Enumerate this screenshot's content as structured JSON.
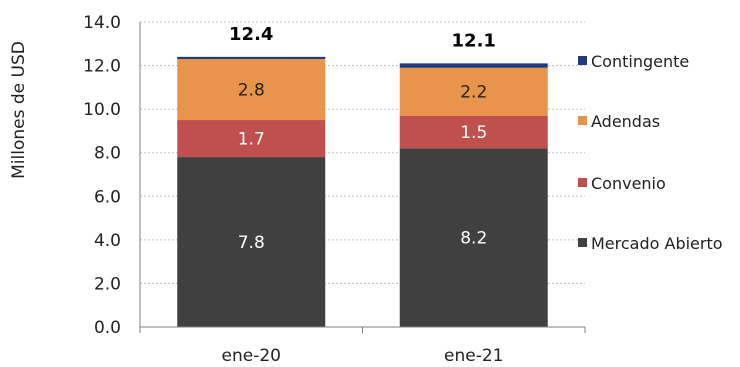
{
  "chart_data": {
    "type": "bar",
    "stacked": true,
    "title": "",
    "xlabel": "",
    "ylabel": "Millones de USD",
    "ylim": [
      0,
      14
    ],
    "yticks": [
      "0.0",
      "2.0",
      "4.0",
      "6.0",
      "8.0",
      "10.0",
      "12.0",
      "14.0"
    ],
    "categories": [
      "ene-20",
      "ene-21"
    ],
    "totals": [
      "12.4",
      "12.1"
    ],
    "grid": true,
    "legend_position": "right",
    "series": [
      {
        "name": "Mercado Abierto",
        "color": "#404040",
        "label_color": "#ffffff",
        "values": [
          7.8,
          8.2
        ],
        "labels": [
          "7.8",
          "8.2"
        ]
      },
      {
        "name": "Convenio",
        "color": "#c0504d",
        "label_color": "#ffffff",
        "values": [
          1.7,
          1.5
        ],
        "labels": [
          "1.7",
          "1.5"
        ]
      },
      {
        "name": "Adendas",
        "color": "#e8944a",
        "label_color": "#222222",
        "values": [
          2.8,
          2.2
        ],
        "labels": [
          "2.8",
          "2.2"
        ]
      },
      {
        "name": "Contingente",
        "color": "#1f3b7a",
        "label_color": "#ffffff",
        "values": [
          0.1,
          0.2
        ],
        "labels": [
          "",
          ""
        ]
      }
    ],
    "legend_order": [
      "Contingente",
      "Adendas",
      "Convenio",
      "Mercado Abierto"
    ]
  }
}
